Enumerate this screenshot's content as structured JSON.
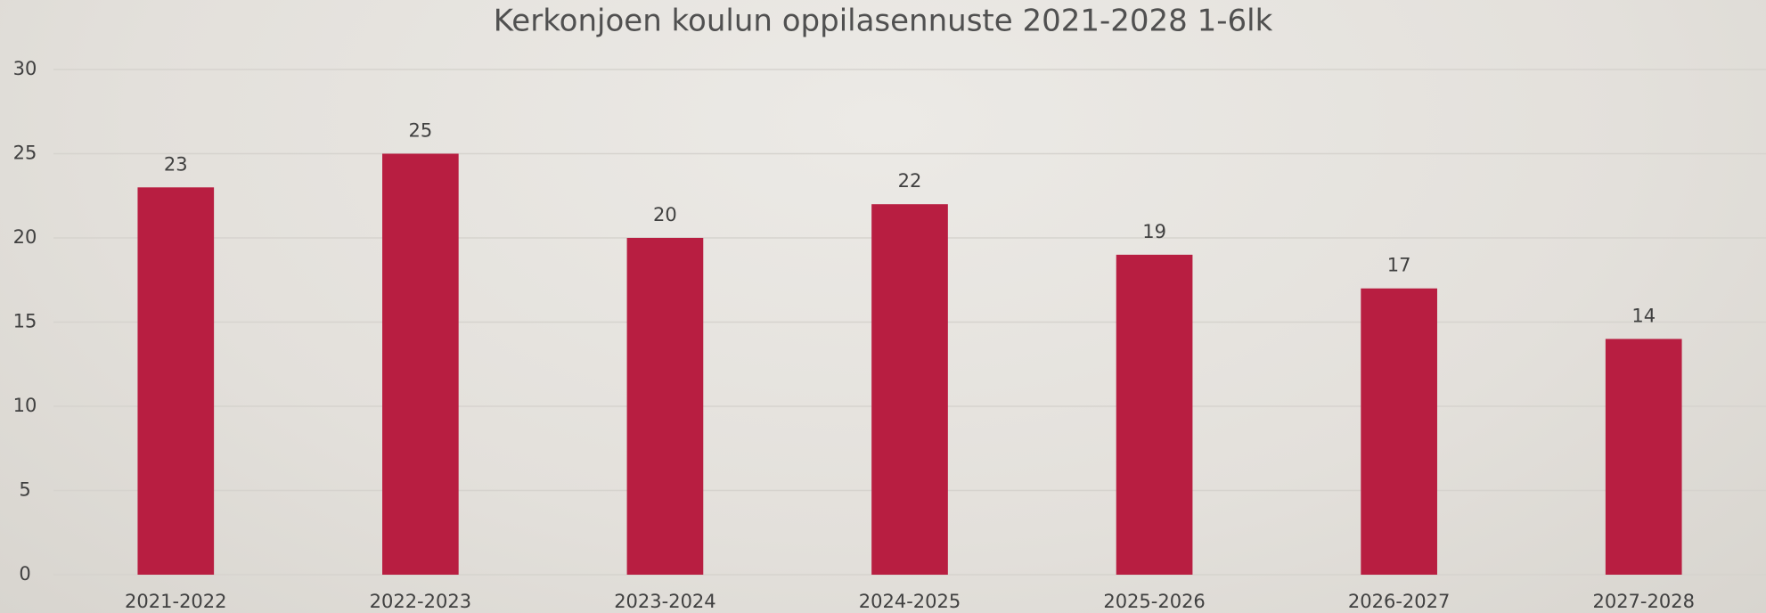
{
  "chart_data": {
    "type": "bar",
    "title": "Kerkonjoen koulun oppilasennuste 2021-2028 1-6lk",
    "categories": [
      "2021-2022",
      "2022-2023",
      "2023-2024",
      "2024-2025",
      "2025-2026",
      "2026-2027",
      "2027-2028"
    ],
    "values": [
      23,
      25,
      20,
      22,
      19,
      17,
      14
    ],
    "color": "#b81e41",
    "ylim": [
      0,
      30
    ],
    "yticks": [
      0,
      5,
      10,
      15,
      20,
      25,
      30
    ],
    "grid": true,
    "data_labels": true
  }
}
